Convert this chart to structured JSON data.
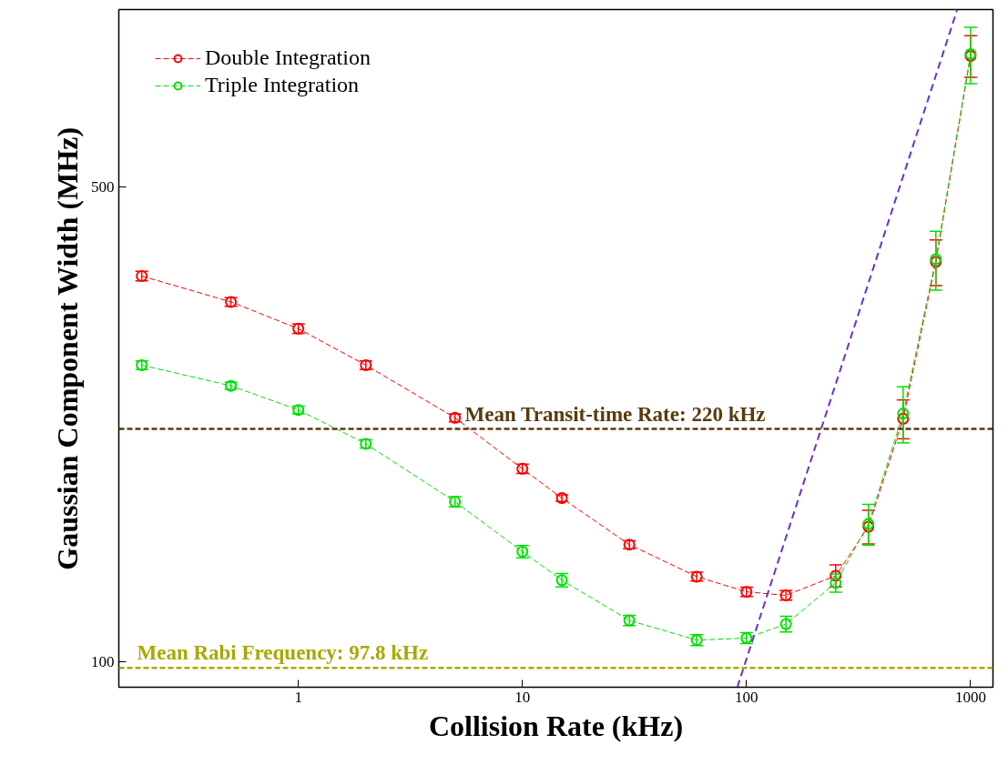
{
  "chart_data": {
    "type": "line",
    "xlabel": "Collision Rate (kHz)",
    "ylabel": "Gaussian Component Width (MHz)",
    "log": "xy",
    "xlim": [
      0.158,
      1259
    ],
    "ylim": [
      91.6,
      913
    ],
    "xticks": [
      1,
      10,
      100,
      1000
    ],
    "yticks": [
      100,
      500
    ],
    "grid": false,
    "legend": "top left",
    "marker": "circle",
    "line_style": "dashed",
    "x": [
      0.2,
      0.5,
      1,
      2,
      5,
      10,
      15,
      30,
      60,
      100,
      150,
      250,
      350,
      500,
      700,
      1000
    ],
    "series": [
      {
        "name": "Double Integration",
        "color": "#ff0000",
        "values": [
          369.6,
          338.6,
          309.2,
          273.2,
          228.5,
          192.2,
          174.0,
          148.6,
          133.3,
          126.6,
          125.1,
          133.7,
          157.9,
          227.8,
          387.9,
          780.3
        ],
        "errors": [
          6,
          5,
          5,
          4,
          3,
          3,
          2,
          2,
          2,
          2,
          2,
          5,
          9,
          15,
          30,
          55
        ]
      },
      {
        "name": "Triple Integration",
        "color": "#00e000",
        "values": [
          273.2,
          254.7,
          234.7,
          209.2,
          171.9,
          145.1,
          131.7,
          114.9,
          107.5,
          108.2,
          113.5,
          130.5,
          159.4,
          231.9,
          391.4,
          785.0
        ],
        "errors": [
          4,
          3,
          3,
          3,
          3,
          3,
          3,
          2,
          2,
          2,
          3,
          4,
          11,
          22,
          39,
          75
        ]
      },
      {
        "type": "line",
        "color": "#6a2fd0",
        "x": [
          91,
          872
        ],
        "values": [
          91.6,
          913
        ],
        "marker": "none"
      }
    ],
    "ref_lines": [
      {
        "axis": "y",
        "value": 220,
        "label": "Mean Transit-time Rate: 220 kHz",
        "color": "#5a3a10",
        "line_style": "dashed"
      },
      {
        "axis": "y",
        "value": 97.8,
        "label": "Mean Rabi Frequency: 97.8 kHz",
        "color": "#a8a800",
        "line_style": "dashed"
      }
    ]
  }
}
